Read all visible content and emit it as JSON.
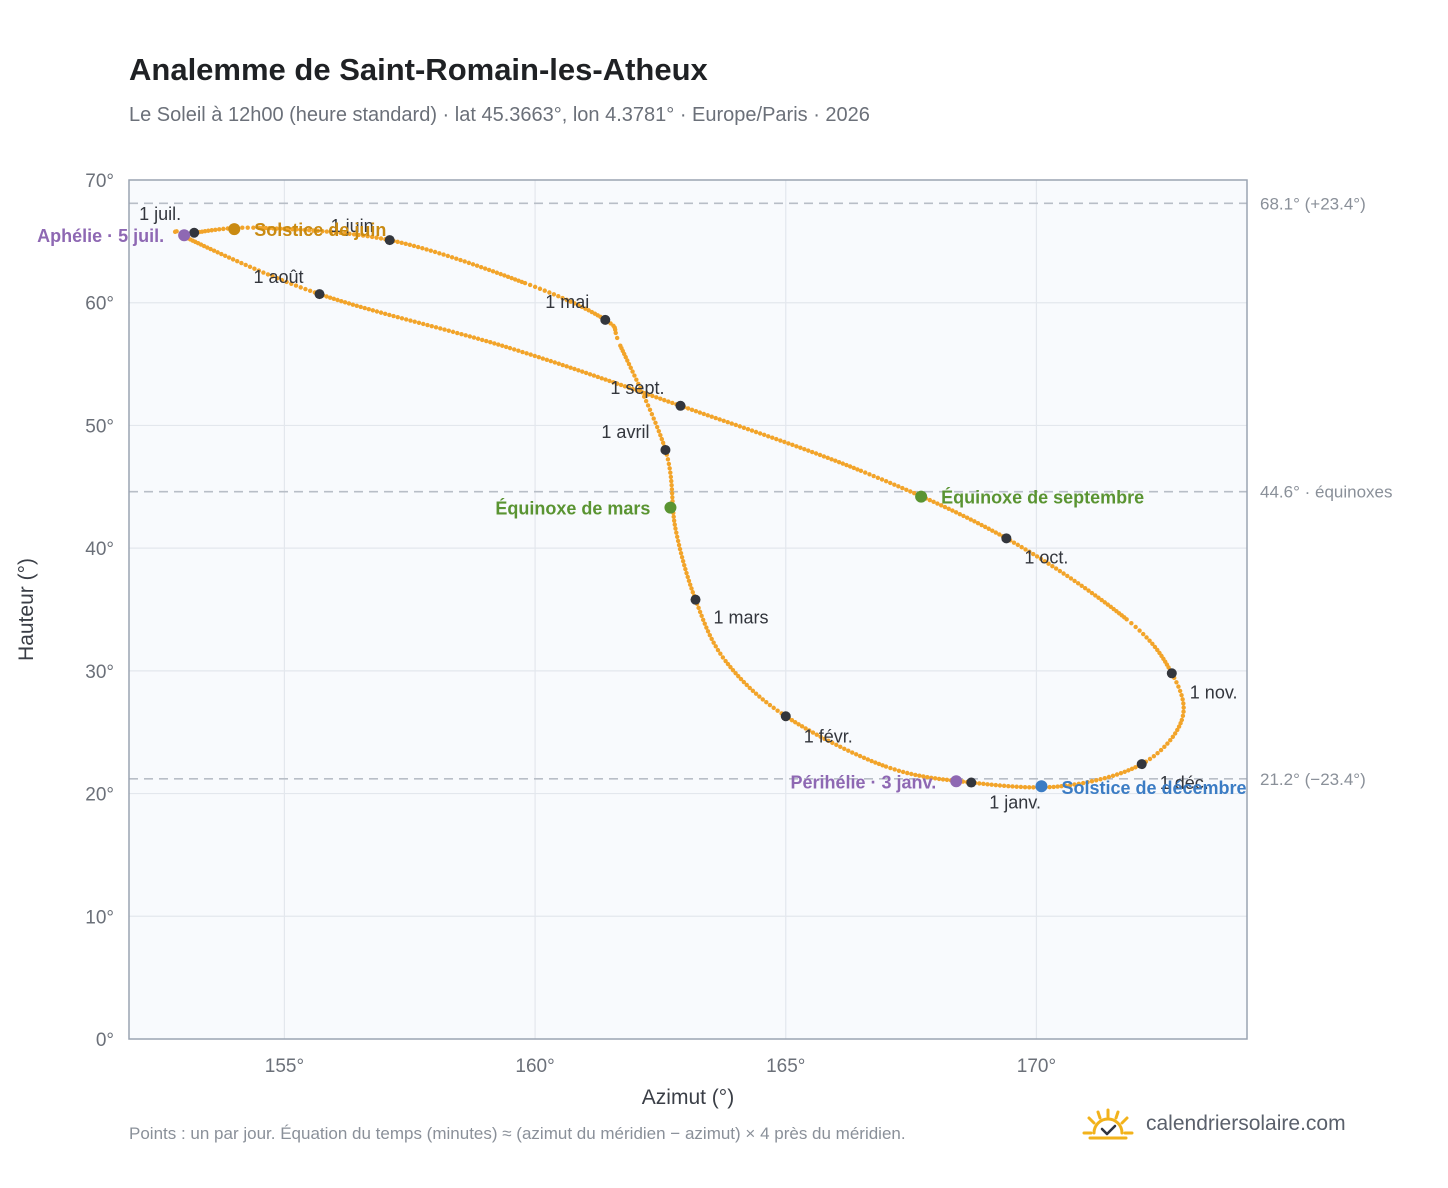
{
  "title": "Analemme de Saint-Romain-les-Atheux",
  "subtitle": "Le Soleil à 12h00 (heure standard) · lat 45.3663°, lon 4.3781° · Europe/Paris · 2026",
  "footnote": "Points : un par jour. Équation du temps (minutes) ≈ (azimut du méridien − azimut) × 4 près du méridien.",
  "brand": {
    "name": "calendriersolaire.com",
    "icon": "sun-check-icon"
  },
  "colors": {
    "curve": "#f2a42a",
    "month_marker": "#33363d",
    "equinox": "#5a9432",
    "solstice_june": "#c98a12",
    "solstice_december": "#3b7cc4",
    "apsis": "#8e68b3",
    "plot_background": "#f8fafd",
    "grid": "#e3e7ed",
    "frame": "#9aa4b2",
    "reference_line": "#b8bec7"
  },
  "chart_data": {
    "type": "scatter",
    "xlabel": "Azimut (°)",
    "ylabel": "Hauteur (°)",
    "xlim": [
      151.9,
      174.2
    ],
    "ylim": [
      0,
      70
    ],
    "xticks": [
      155,
      160,
      165,
      170
    ],
    "yticks": [
      0,
      10,
      20,
      30,
      40,
      50,
      60,
      70
    ],
    "x_tick_labels": [
      "155°",
      "160°",
      "165°",
      "170°"
    ],
    "y_tick_labels": [
      "0°",
      "10°",
      "20°",
      "30°",
      "40°",
      "50°",
      "60°",
      "70°"
    ],
    "grid": true,
    "reference_lines": [
      {
        "y": 68.1,
        "label": "68.1° (+23.4°)"
      },
      {
        "y": 44.6,
        "label": "44.6° · équinoxes"
      },
      {
        "y": 21.2,
        "label": "21.2° (−23.4°)"
      }
    ],
    "month_starts": [
      {
        "label": "1 janv.",
        "azimuth": 168.7,
        "altitude": 20.9
      },
      {
        "label": "1 févr.",
        "azimuth": 165.0,
        "altitude": 26.3
      },
      {
        "label": "1 mars",
        "azimuth": 163.2,
        "altitude": 35.8
      },
      {
        "label": "1 avril",
        "azimuth": 162.6,
        "altitude": 48.0
      },
      {
        "label": "1 mai",
        "azimuth": 161.4,
        "altitude": 58.6
      },
      {
        "label": "1 juin",
        "azimuth": 157.1,
        "altitude": 65.1
      },
      {
        "label": "1 juil.",
        "azimuth": 153.2,
        "altitude": 65.7
      },
      {
        "label": "1 août",
        "azimuth": 155.7,
        "altitude": 60.7
      },
      {
        "label": "1 sept.",
        "azimuth": 162.9,
        "altitude": 51.6
      },
      {
        "label": "1 oct.",
        "azimuth": 169.4,
        "altitude": 40.8
      },
      {
        "label": "1 nov.",
        "azimuth": 172.7,
        "altitude": 29.8
      },
      {
        "label": "1 déc.",
        "azimuth": 172.1,
        "altitude": 22.4
      }
    ],
    "events": [
      {
        "label": "Solstice de juin",
        "azimuth": 154.0,
        "altitude": 66.0,
        "kind": "solstice_june"
      },
      {
        "label": "Aphélie · 5 juil.",
        "azimuth": 153.0,
        "altitude": 65.5,
        "kind": "apsis"
      },
      {
        "label": "Équinoxe de mars",
        "azimuth": 162.7,
        "altitude": 43.3,
        "kind": "equinox"
      },
      {
        "label": "Équinoxe de septembre",
        "azimuth": 167.7,
        "altitude": 44.2,
        "kind": "equinox"
      },
      {
        "label": "Périhélie · 3 janv.",
        "azimuth": 168.4,
        "altitude": 21.0,
        "kind": "apsis"
      },
      {
        "label": "Solstice de décembre",
        "azimuth": 170.1,
        "altitude": 20.6,
        "kind": "solstice_december"
      }
    ],
    "series": [
      {
        "values": [
          [
            168.7,
            20.9
          ],
          [
            167.0,
            22.2
          ],
          [
            165.0,
            26.3
          ],
          [
            163.8,
            30.8
          ],
          [
            163.2,
            35.8
          ],
          [
            162.8,
            41.6
          ],
          [
            162.6,
            48.0
          ],
          [
            161.7,
            56.5
          ],
          [
            161.4,
            58.6
          ],
          [
            159.8,
            61.6
          ],
          [
            157.1,
            65.1
          ],
          [
            154.5,
            66.1
          ],
          [
            153.2,
            65.7
          ],
          [
            153.0,
            65.4
          ],
          [
            155.7,
            60.7
          ],
          [
            159.5,
            56.3
          ],
          [
            162.9,
            51.6
          ],
          [
            166.5,
            46.3
          ],
          [
            169.4,
            40.8
          ],
          [
            171.8,
            34.2
          ],
          [
            172.7,
            29.8
          ],
          [
            172.9,
            26.0
          ],
          [
            172.1,
            22.4
          ],
          [
            170.5,
            20.6
          ],
          [
            168.7,
            20.9
          ]
        ]
      }
    ]
  }
}
